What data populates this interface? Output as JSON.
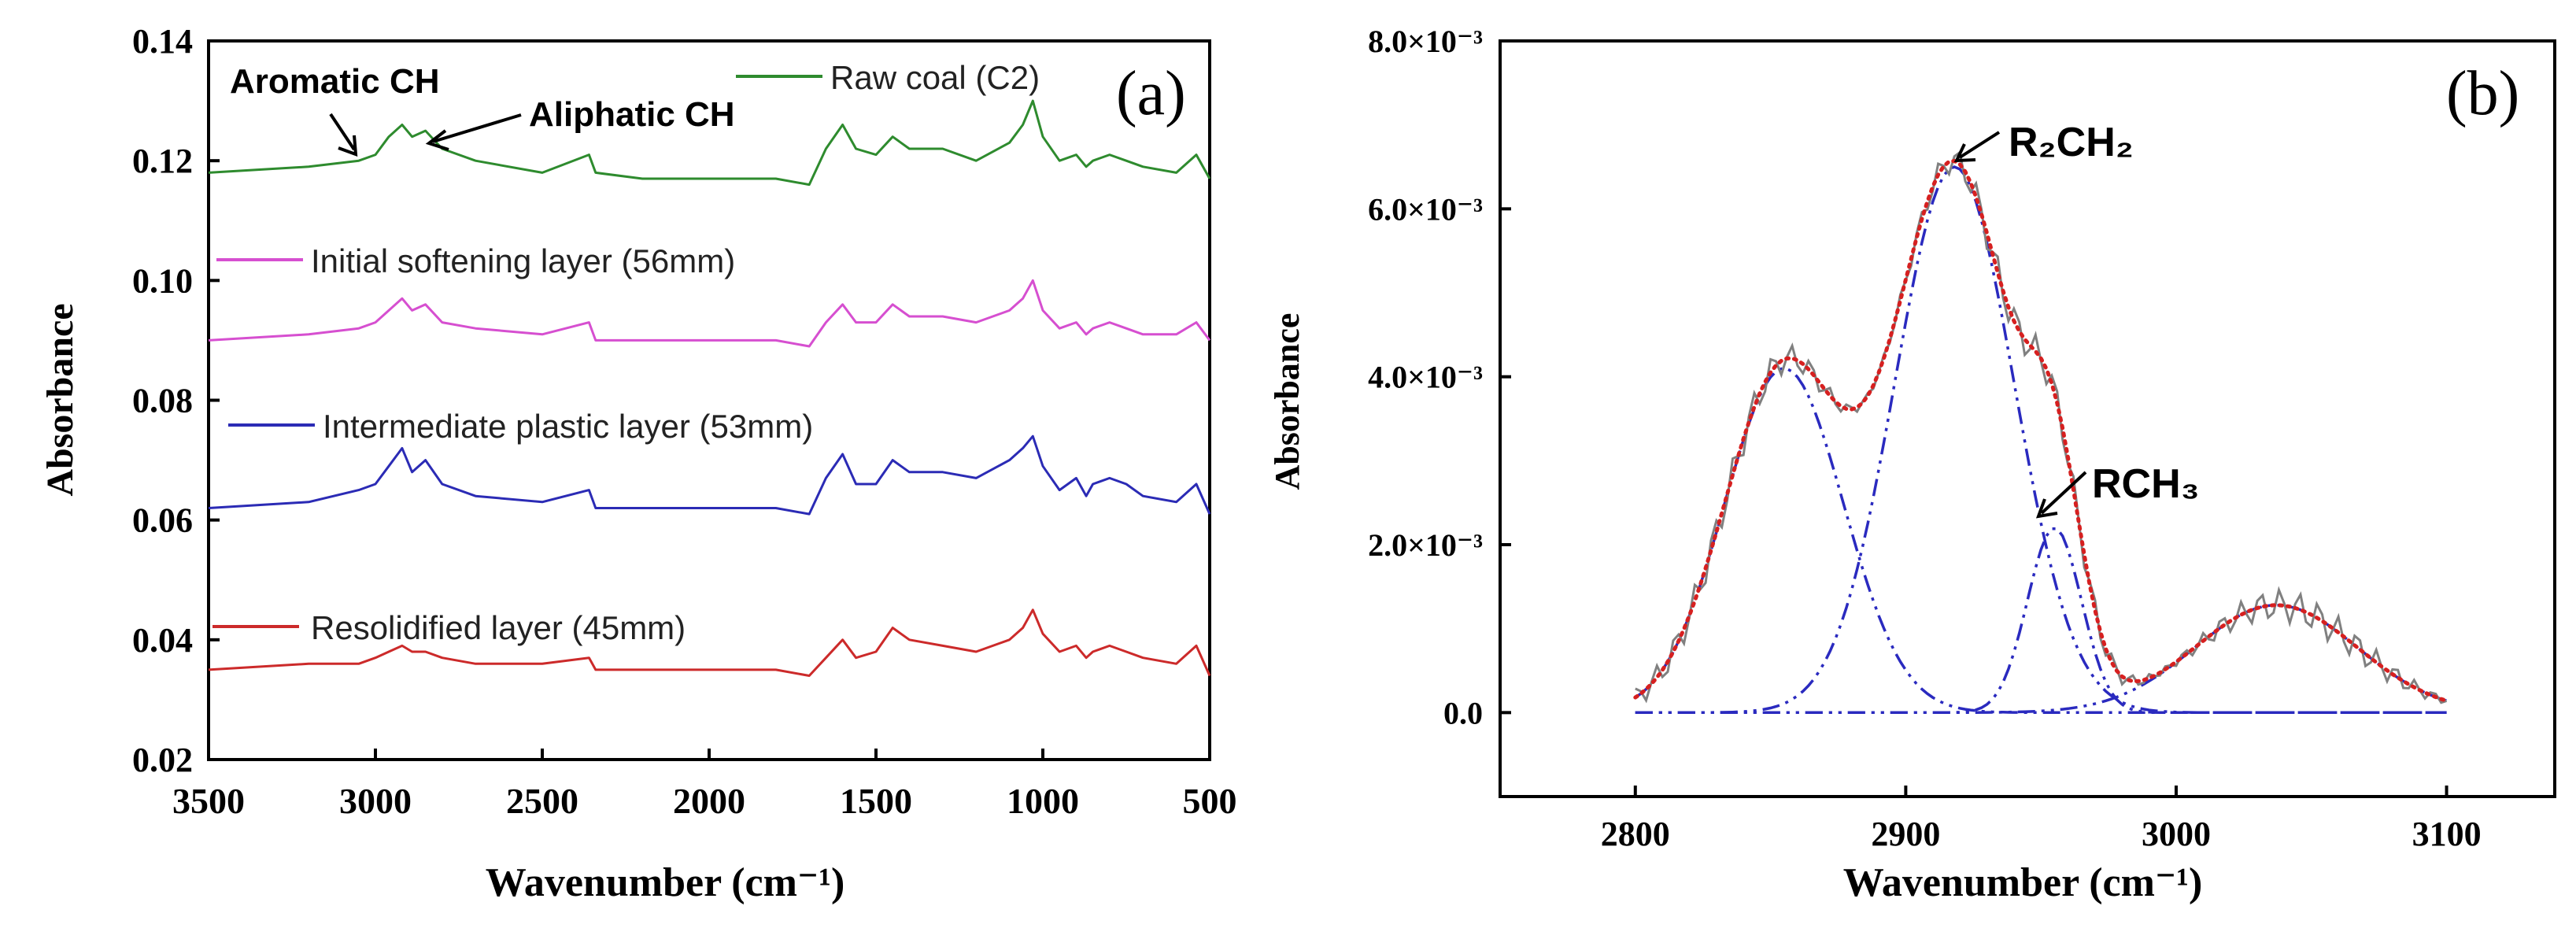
{
  "chart_data": [
    {
      "panel": "(a)",
      "type": "line",
      "xlabel": "Wavenumber (cm⁻¹)",
      "ylabel": "Absorbance",
      "xlim": [
        3500,
        500
      ],
      "ylim": [
        0.02,
        0.14
      ],
      "x_reversed": true,
      "xticks": [
        3500,
        3000,
        2500,
        2000,
        1500,
        1000,
        500
      ],
      "yticks": [
        0.02,
        0.04,
        0.06,
        0.08,
        0.1,
        0.12,
        0.14
      ],
      "ytick_labels": [
        "0.02",
        "0.04",
        "0.06",
        "0.08",
        "0.10",
        "0.12",
        "0.14"
      ],
      "grid": false,
      "legend": "inline labels above each trace",
      "annotations": [
        "Aromatic CH",
        "Aliphatic CH"
      ],
      "series": [
        {
          "name": "Raw coal (C2)",
          "color": "#2e8b2e",
          "x": [
            3500,
            3200,
            3050,
            3000,
            2960,
            2920,
            2890,
            2850,
            2800,
            2700,
            2500,
            2360,
            2340,
            2200,
            2000,
            1800,
            1700,
            1650,
            1600,
            1560,
            1500,
            1450,
            1400,
            1300,
            1200,
            1100,
            1060,
            1030,
            1000,
            950,
            900,
            870,
            850,
            800,
            750,
            700,
            600,
            540,
            500
          ],
          "y": [
            0.118,
            0.119,
            0.12,
            0.121,
            0.124,
            0.126,
            0.124,
            0.125,
            0.122,
            0.12,
            0.118,
            0.121,
            0.118,
            0.117,
            0.117,
            0.117,
            0.116,
            0.122,
            0.126,
            0.122,
            0.121,
            0.124,
            0.122,
            0.122,
            0.12,
            0.123,
            0.126,
            0.13,
            0.124,
            0.12,
            0.121,
            0.119,
            0.12,
            0.121,
            0.12,
            0.119,
            0.118,
            0.121,
            0.117
          ]
        },
        {
          "name": "Initial softening layer (56mm)",
          "color": "#d64fd0",
          "x": [
            3500,
            3200,
            3050,
            3000,
            2960,
            2920,
            2890,
            2850,
            2800,
            2700,
            2500,
            2360,
            2340,
            2200,
            2000,
            1800,
            1700,
            1650,
            1600,
            1560,
            1500,
            1450,
            1400,
            1300,
            1200,
            1100,
            1060,
            1030,
            1000,
            950,
            900,
            870,
            850,
            800,
            750,
            700,
            600,
            540,
            500
          ],
          "y": [
            0.09,
            0.091,
            0.092,
            0.093,
            0.095,
            0.097,
            0.095,
            0.096,
            0.093,
            0.092,
            0.091,
            0.093,
            0.09,
            0.09,
            0.09,
            0.09,
            0.089,
            0.093,
            0.096,
            0.093,
            0.093,
            0.096,
            0.094,
            0.094,
            0.093,
            0.095,
            0.097,
            0.1,
            0.095,
            0.092,
            0.093,
            0.091,
            0.092,
            0.093,
            0.092,
            0.091,
            0.091,
            0.093,
            0.09
          ]
        },
        {
          "name": "Intermediate plastic layer (53mm)",
          "color": "#2b2bb5",
          "x": [
            3500,
            3200,
            3050,
            3000,
            2960,
            2920,
            2890,
            2850,
            2800,
            2700,
            2500,
            2360,
            2340,
            2200,
            2000,
            1800,
            1700,
            1650,
            1600,
            1560,
            1500,
            1450,
            1400,
            1300,
            1200,
            1100,
            1060,
            1030,
            1000,
            950,
            900,
            870,
            850,
            800,
            750,
            700,
            600,
            540,
            500
          ],
          "y": [
            0.062,
            0.063,
            0.065,
            0.066,
            0.069,
            0.072,
            0.068,
            0.07,
            0.066,
            0.064,
            0.063,
            0.065,
            0.062,
            0.062,
            0.062,
            0.062,
            0.061,
            0.067,
            0.071,
            0.066,
            0.066,
            0.07,
            0.068,
            0.068,
            0.067,
            0.07,
            0.072,
            0.074,
            0.069,
            0.065,
            0.067,
            0.064,
            0.066,
            0.067,
            0.066,
            0.064,
            0.063,
            0.066,
            0.061
          ]
        },
        {
          "name": "Resolidified layer (45mm)",
          "color": "#cc2a2a",
          "x": [
            3500,
            3200,
            3050,
            3000,
            2960,
            2920,
            2890,
            2850,
            2800,
            2700,
            2500,
            2360,
            2340,
            2200,
            2000,
            1800,
            1700,
            1650,
            1600,
            1560,
            1500,
            1450,
            1400,
            1300,
            1200,
            1100,
            1060,
            1030,
            1000,
            950,
            900,
            870,
            850,
            800,
            750,
            700,
            600,
            540,
            500
          ],
          "y": [
            0.035,
            0.036,
            0.036,
            0.037,
            0.038,
            0.039,
            0.038,
            0.038,
            0.037,
            0.036,
            0.036,
            0.037,
            0.035,
            0.035,
            0.035,
            0.035,
            0.034,
            0.037,
            0.04,
            0.037,
            0.038,
            0.042,
            0.04,
            0.039,
            0.038,
            0.04,
            0.042,
            0.045,
            0.041,
            0.038,
            0.039,
            0.037,
            0.038,
            0.039,
            0.038,
            0.037,
            0.036,
            0.039,
            0.034
          ]
        }
      ]
    },
    {
      "panel": "(b)",
      "type": "line",
      "xlabel": "Wavenumber (cm⁻¹)",
      "ylabel": "Absorbance",
      "xlim": [
        2750,
        3140
      ],
      "ylim": [
        -0.001,
        0.008
      ],
      "xticks": [
        2800,
        2900,
        3000,
        3100
      ],
      "yticks": [
        0.0,
        0.002,
        0.004,
        0.006,
        0.008
      ],
      "ytick_labels": [
        "0.0",
        "2.0×10⁻³",
        "4.0×10⁻³",
        "6.0×10⁻³",
        "8.0×10⁻³"
      ],
      "grid": false,
      "annotations": [
        "R₂CH₂",
        "RCH₃"
      ],
      "components": [
        {
          "center": 2855,
          "amplitude": 0.0041,
          "sigma": 22
        },
        {
          "center": 2918,
          "amplitude": 0.0065,
          "sigma": 22
        },
        {
          "center": 2955,
          "amplitude": 0.0022,
          "sigma": 10
        },
        {
          "center": 3037,
          "amplitude": 0.00128,
          "sigma": 30
        }
      ],
      "colors": {
        "measured": "#808080",
        "fit": "#d62020",
        "components": "#2a2abf"
      }
    }
  ]
}
